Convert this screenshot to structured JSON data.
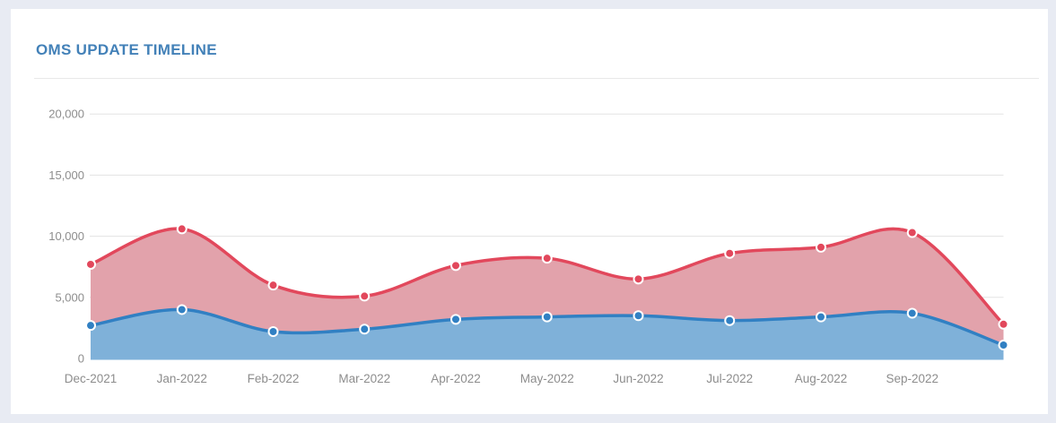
{
  "page": {
    "background_color": "#e8ebf3"
  },
  "card": {
    "title": "OMS UPDATE TIMELINE",
    "title_color": "#4381b8",
    "background_color": "#ffffff",
    "divider_color": "#e9e9e9"
  },
  "chart_data": {
    "type": "area",
    "title": "OMS UPDATE TIMELINE",
    "smooth": true,
    "grid": true,
    "legend": false,
    "xlabel": "",
    "ylabel": "",
    "categories": [
      "Dec-2021",
      "Jan-2022",
      "Feb-2022",
      "Mar-2022",
      "Apr-2022",
      "May-2022",
      "Jun-2022",
      "Jul-2022",
      "Aug-2022",
      "Sep-2022",
      ""
    ],
    "series": [
      {
        "name": "red-series",
        "line_color": "#e2485c",
        "fill_color": "#e2a2ab",
        "values": [
          7700,
          10600,
          6000,
          5100,
          7600,
          8200,
          6500,
          8600,
          9100,
          10300,
          2800
        ]
      },
      {
        "name": "blue-series",
        "line_color": "#3180c3",
        "fill_color": "#7fb1d9",
        "values": [
          2700,
          4000,
          2200,
          2400,
          3200,
          3400,
          3500,
          3100,
          3400,
          3700,
          1100
        ]
      }
    ],
    "ylim": [
      0,
      20000
    ],
    "yticks": [
      0,
      5000,
      10000,
      15000,
      20000
    ],
    "ytick_labels": [
      "0",
      "5,000",
      "10,000",
      "15,000",
      "20,000"
    ],
    "axis_label_color": "#8d8d8d",
    "gridline_color": "#e3e3e3"
  }
}
